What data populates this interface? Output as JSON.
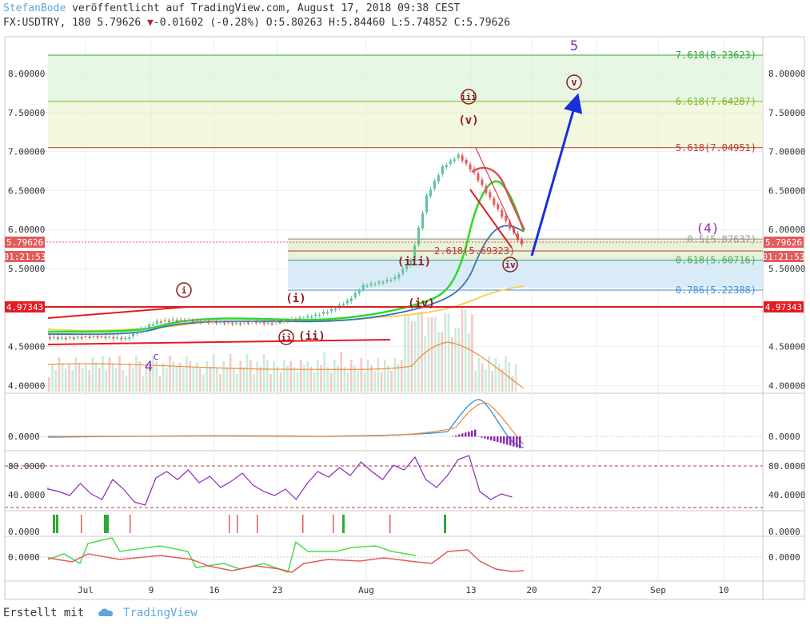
{
  "header": {
    "author": "StefanBode",
    "published_text": "veröffentlicht auf TradingView.com, August 17, 2018 09:38 CEST",
    "symbol": "FX:USDTRY",
    "interval": "180",
    "last": "5.79626",
    "change_arrow": "▼",
    "change": "-0.01602",
    "change_pct": "(-0.28%)",
    "open_label": "O:",
    "open": "5.80263",
    "high_label": "H:",
    "high": "5.84460",
    "low_label": "L:",
    "low": "5.74852",
    "close_label": "C:",
    "close": "5.79626"
  },
  "footer": {
    "prefix": "Erstellt mit",
    "brand": "TradingView",
    "brand_icon": "tradingview-cloud-icon"
  },
  "colors": {
    "up": "#5ec59a",
    "down": "#e35b5b",
    "accent_blue": "#1a2edc",
    "purple": "#8a2bb3",
    "price_line": "#e31b23"
  },
  "chart_data": {
    "type": "candlestick",
    "main": {
      "y_ticks": [
        "8.00000",
        "7.50000",
        "7.00000",
        "6.50000",
        "6.00000",
        "5.50000",
        "4.50000",
        "4.00000"
      ],
      "y_range": [
        3.85,
        8.48
      ],
      "x_ticks": [
        "Jul",
        "9",
        "16",
        "23",
        "Aug",
        "13",
        "20",
        "27",
        "Sep",
        "10"
      ],
      "price_series": [
        [
          "Jun 28",
          4.62
        ],
        [
          "Jul 1",
          4.61
        ],
        [
          "Jul 3",
          4.62
        ],
        [
          "Jul 5",
          4.63
        ],
        [
          "Jul 7",
          4.62
        ],
        [
          "Jul 9",
          4.6
        ],
        [
          "Jul 10",
          4.72
        ],
        [
          "Jul 12",
          4.82
        ],
        [
          "Jul 14",
          4.84
        ],
        [
          "Jul 16",
          4.83
        ],
        [
          "Jul 19",
          4.82
        ],
        [
          "Jul 21",
          4.81
        ],
        [
          "Jul 23",
          4.8
        ],
        [
          "Jul 24",
          4.82
        ],
        [
          "Jul 26",
          4.8
        ],
        [
          "Jul 28",
          4.83
        ],
        [
          "Jul 30",
          4.86
        ],
        [
          "Aug 1",
          4.9
        ],
        [
          "Aug 3",
          4.97
        ],
        [
          "Aug 5",
          5.08
        ],
        [
          "Aug 7",
          5.28
        ],
        [
          "Aug 8",
          5.32
        ],
        [
          "Aug 9",
          5.38
        ],
        [
          "Aug 10",
          5.6
        ],
        [
          "Aug 11",
          6.43
        ],
        [
          "Aug 12",
          6.8
        ],
        [
          "Aug 13",
          6.95
        ],
        [
          "Aug 14",
          6.72
        ],
        [
          "Aug 15",
          6.4
        ],
        [
          "Aug 16",
          6.1
        ],
        [
          "Aug 17",
          5.8
        ]
      ],
      "price_label": "5.79626",
      "countdown": "01:21:53",
      "horizontal_level": "4.97343",
      "fib_levels": [
        {
          "label": "7.618(8.23623)",
          "value": 8.23623,
          "color": "#2fa83a"
        },
        {
          "label": "6.618(7.64287)",
          "value": 7.64287,
          "color": "#7ab82c"
        },
        {
          "label": "5.618(7.04951)",
          "value": 7.04951,
          "color": "#c0392b"
        },
        {
          "label": "0.5(5.87637)",
          "value": 5.87637,
          "color": "#999999"
        },
        {
          "label": "0.618(5.60716)",
          "value": 5.60716,
          "color": "#4caf50"
        },
        {
          "label": "0.786(5.22388)",
          "value": 5.22388,
          "color": "#3a8fd6"
        }
      ],
      "extension_label": "2.618(5.69323)",
      "wave_labels": [
        "5",
        "(v)",
        "v",
        "iii",
        "(4)",
        "iv",
        "i",
        "(i)",
        "ii",
        "(ii)",
        "(iii)",
        "(iv)",
        "4",
        "c"
      ]
    },
    "macd": {
      "y_ticks": [
        "0.0000"
      ]
    },
    "rsi": {
      "y_ticks": [
        "80.0000",
        "40.0000"
      ]
    },
    "signal": {
      "y_ticks": [
        "0.0000"
      ]
    },
    "osc": {
      "y_ticks": [
        "0.0000"
      ]
    }
  }
}
